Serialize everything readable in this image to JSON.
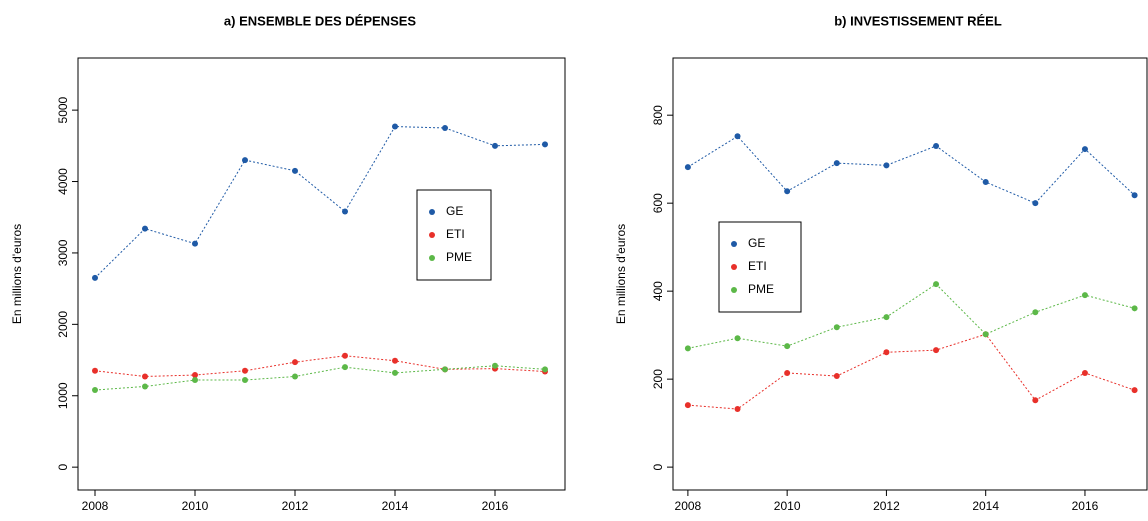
{
  "chart_data": [
    {
      "type": "line",
      "title": "a) ENSEMBLE DES DÉPENSES",
      "y_label": "En millions d'euros",
      "x": [
        2008,
        2009,
        2010,
        2011,
        2012,
        2013,
        2014,
        2015,
        2016,
        2017
      ],
      "xlim": [
        2007.66,
        2017.4
      ],
      "xticks": [
        2008,
        2010,
        2012,
        2014,
        2016
      ],
      "ylim": [
        -320,
        5730
      ],
      "yticks": [
        0,
        1000,
        2000,
        3000,
        4000,
        5000
      ],
      "legend_position": "center-right",
      "series": [
        {
          "name": "GE",
          "color": "#1f5aa6",
          "values": [
            2650,
            3340,
            3130,
            4300,
            4150,
            3580,
            4770,
            4750,
            4500,
            4520
          ]
        },
        {
          "name": "ETI",
          "color": "#e8302a",
          "values": [
            1350,
            1270,
            1290,
            1350,
            1470,
            1560,
            1490,
            1370,
            1380,
            1340
          ]
        },
        {
          "name": "PME",
          "color": "#5cb848",
          "values": [
            1080,
            1130,
            1220,
            1220,
            1270,
            1400,
            1320,
            1370,
            1420,
            1370
          ]
        }
      ]
    },
    {
      "type": "line",
      "title": "b) INVESTISSEMENT RÉEL",
      "y_label": "En millions d'euros",
      "x": [
        2008,
        2009,
        2010,
        2011,
        2012,
        2013,
        2014,
        2015,
        2016,
        2017
      ],
      "xlim": [
        2007.7,
        2017.25
      ],
      "xticks": [
        2008,
        2010,
        2012,
        2014,
        2016
      ],
      "ylim": [
        -52,
        930
      ],
      "yticks": [
        0,
        200,
        400,
        600,
        800
      ],
      "legend_position": "center-left",
      "series": [
        {
          "name": "GE",
          "color": "#1f5aa6",
          "values": [
            682,
            752,
            627,
            691,
            686,
            730,
            648,
            600,
            723,
            618
          ]
        },
        {
          "name": "ETI",
          "color": "#e8302a",
          "values": [
            141,
            132,
            214,
            207,
            261,
            266,
            302,
            152,
            214,
            175
          ]
        },
        {
          "name": "PME",
          "color": "#5cb848",
          "values": [
            270,
            293,
            275,
            318,
            341,
            416,
            302,
            352,
            391,
            361
          ]
        }
      ]
    }
  ]
}
